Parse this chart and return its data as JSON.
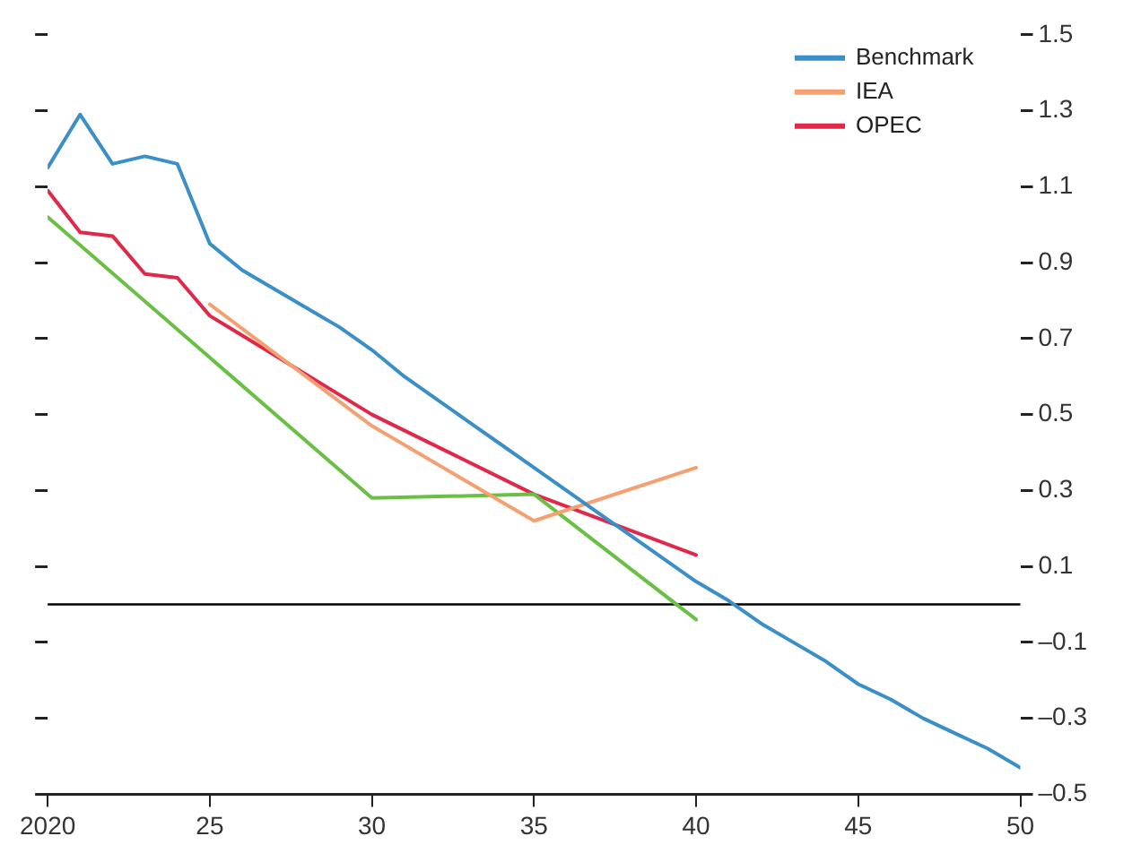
{
  "chart_data": {
    "type": "line",
    "legend": "top right",
    "grid": false,
    "marker": "none",
    "line_style": "solid",
    "xlim": [
      2020,
      2050
    ],
    "xticks": [
      2020,
      {
        "value": 2025,
        "label": "25"
      },
      {
        "value": 2030,
        "label": "30"
      },
      {
        "value": 2035,
        "label": "35"
      },
      {
        "value": 2040,
        "label": "40"
      },
      {
        "value": 2045,
        "label": "45"
      },
      {
        "value": 2050,
        "label": "50"
      }
    ],
    "ylim": [
      -0.5,
      1.5
    ],
    "yticks": [
      {
        "value": -0.5,
        "label": "–0.5"
      },
      {
        "value": -0.3,
        "label": "–0.3"
      },
      {
        "value": -0.1,
        "label": "–0.1"
      },
      0.1,
      0.3,
      0.5,
      0.7,
      0.9,
      1.1,
      1.3,
      1.5
    ],
    "ref_lines": [
      {
        "axis": "y",
        "value": 0,
        "color": "#000000"
      }
    ],
    "series": [
      {
        "name": "Benchmark",
        "color": "#3a8fc8",
        "x": [
          2020,
          2021,
          2022,
          2023,
          2024,
          2025,
          2026,
          2027,
          2028,
          2029,
          2030,
          2031,
          2032,
          2033,
          2034,
          2035,
          2036,
          2037,
          2038,
          2039,
          2040,
          2041,
          2042,
          2043,
          2044,
          2045,
          2046,
          2047,
          2048,
          2049,
          2050
        ],
        "values": [
          1.15,
          1.29,
          1.16,
          1.18,
          1.16,
          0.95,
          0.88,
          0.83,
          0.78,
          0.73,
          0.67,
          0.6,
          0.54,
          0.48,
          0.42,
          0.36,
          0.3,
          0.24,
          0.18,
          0.12,
          0.06,
          0.01,
          -0.05,
          -0.1,
          -0.15,
          -0.21,
          -0.25,
          -0.3,
          -0.34,
          -0.38,
          -0.43
        ]
      },
      {
        "name": "IEA",
        "color": "#f4a070",
        "x": [
          2025,
          2030,
          2035,
          2040
        ],
        "values": [
          0.79,
          0.47,
          0.22,
          0.36
        ]
      },
      {
        "color": "#6abf45",
        "x": [
          2020,
          2025,
          2030,
          2035,
          2040
        ],
        "values": [
          1.02,
          0.65,
          0.28,
          0.29,
          -0.04
        ]
      },
      {
        "name": "OPEC",
        "color": "#e0294a",
        "x": [
          2020,
          2021,
          2022,
          2023,
          2024,
          2025,
          2030,
          2035,
          2040
        ],
        "values": [
          1.09,
          0.98,
          0.97,
          0.87,
          0.86,
          0.76,
          0.5,
          0.29,
          0.13
        ]
      }
    ]
  }
}
